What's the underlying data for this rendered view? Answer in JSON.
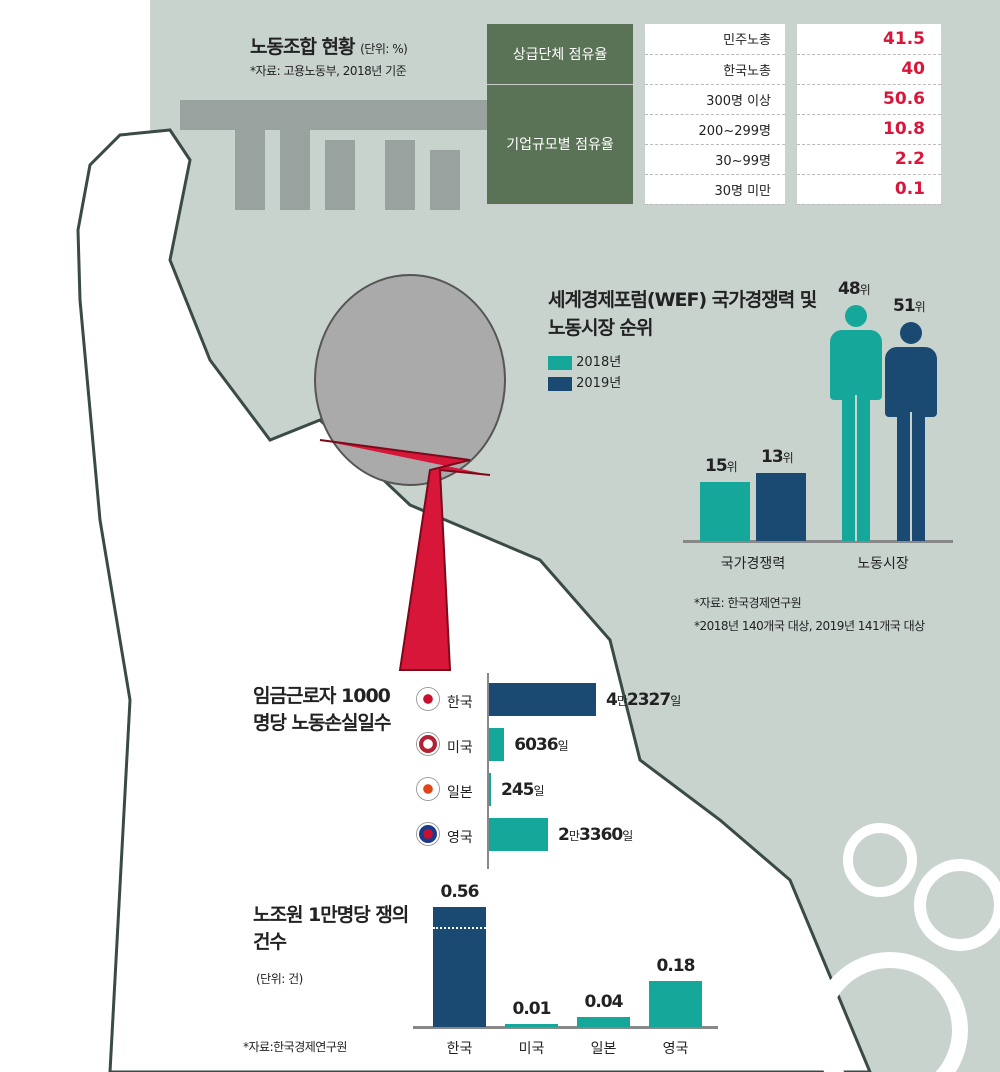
{
  "colors": {
    "teal": "#14a79a",
    "navy": "#1a4a72",
    "red": "#d8163a",
    "green": "#5a7356",
    "panel": "#c9d3ce"
  },
  "union": {
    "title": "노동조합 현황",
    "unit": "(단위: %)",
    "source": "*자료: 고용노동부, 2018년 기준",
    "groups": [
      {
        "label": "상급단체 점유율",
        "rows": [
          {
            "label": "민주노총",
            "value": "41.5"
          },
          {
            "label": "한국노총",
            "value": "40"
          }
        ]
      },
      {
        "label": "기업규모별 점유율",
        "rows": [
          {
            "label": "300명 이상",
            "value": "50.6"
          },
          {
            "label": "200~299명",
            "value": "10.8"
          },
          {
            "label": "30~99명",
            "value": "2.2"
          },
          {
            "label": "30명 미만",
            "value": "0.1"
          }
        ]
      }
    ]
  },
  "chart_data": [
    {
      "type": "bar",
      "title": "세계경제포럼(WEF) 국가경쟁력 및 노동시장 순위",
      "categories": [
        "국가경쟁력",
        "노동시장"
      ],
      "series": [
        {
          "name": "2018년",
          "values": [
            15,
            48
          ],
          "labels": [
            "15위",
            "48위"
          ]
        },
        {
          "name": "2019년",
          "values": [
            13,
            51
          ],
          "labels": [
            "13위",
            "51위"
          ]
        }
      ],
      "legend": "top-left",
      "notes": [
        "*자료: 한국경제연구원",
        "*2018년 140개국 대상, 2019년 141개국 대상"
      ]
    },
    {
      "type": "bar",
      "orientation": "horizontal",
      "title": "임금근로자 1000명당 노동손실일수",
      "categories": [
        "한국",
        "미국",
        "일본",
        "영국"
      ],
      "values": [
        42327,
        6036,
        245,
        23360
      ],
      "labels": [
        [
          "4",
          "만",
          "2327",
          "일"
        ],
        [
          "6036",
          "",
          "",
          "일"
        ],
        [
          "245",
          "",
          "",
          "일"
        ],
        [
          "2",
          "만",
          "3360",
          "일"
        ]
      ]
    },
    {
      "type": "bar",
      "title": "노조원 1만명당 쟁의 건수",
      "unit": "(단위: 건)",
      "categories": [
        "한국",
        "미국",
        "일본",
        "영국"
      ],
      "values": [
        0.56,
        0.01,
        0.04,
        0.18
      ],
      "labels": [
        "0.56",
        "0.01",
        "0.04",
        "0.18"
      ],
      "broken_axis_bar": "한국",
      "source": "*자료:한국경제연구원"
    }
  ]
}
